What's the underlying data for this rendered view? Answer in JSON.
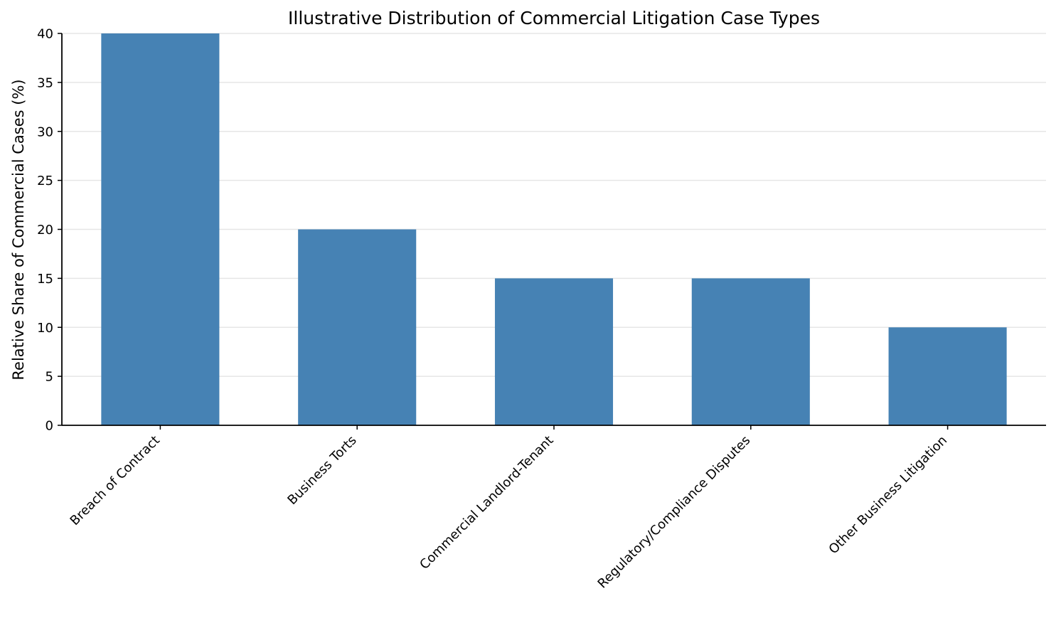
{
  "chart_data": {
    "type": "bar",
    "title": "Illustrative Distribution of Commercial Litigation Case Types",
    "xlabel": "",
    "ylabel": "Relative Share of Commercial Cases (%)",
    "categories": [
      "Breach of Contract",
      "Business Torts",
      "Commercial Landlord-Tenant",
      "Regulatory/Compliance Disputes",
      "Other Business Litigation"
    ],
    "values": [
      40,
      20,
      15,
      15,
      10
    ],
    "ylim": [
      0,
      40
    ],
    "yticks": [
      0,
      5,
      10,
      15,
      20,
      25,
      30,
      35,
      40
    ],
    "grid": "horizontal",
    "legend": "none",
    "bar_color": "#4682b4",
    "grid_color": "#e6e6e6",
    "axis_color": "#000000"
  }
}
